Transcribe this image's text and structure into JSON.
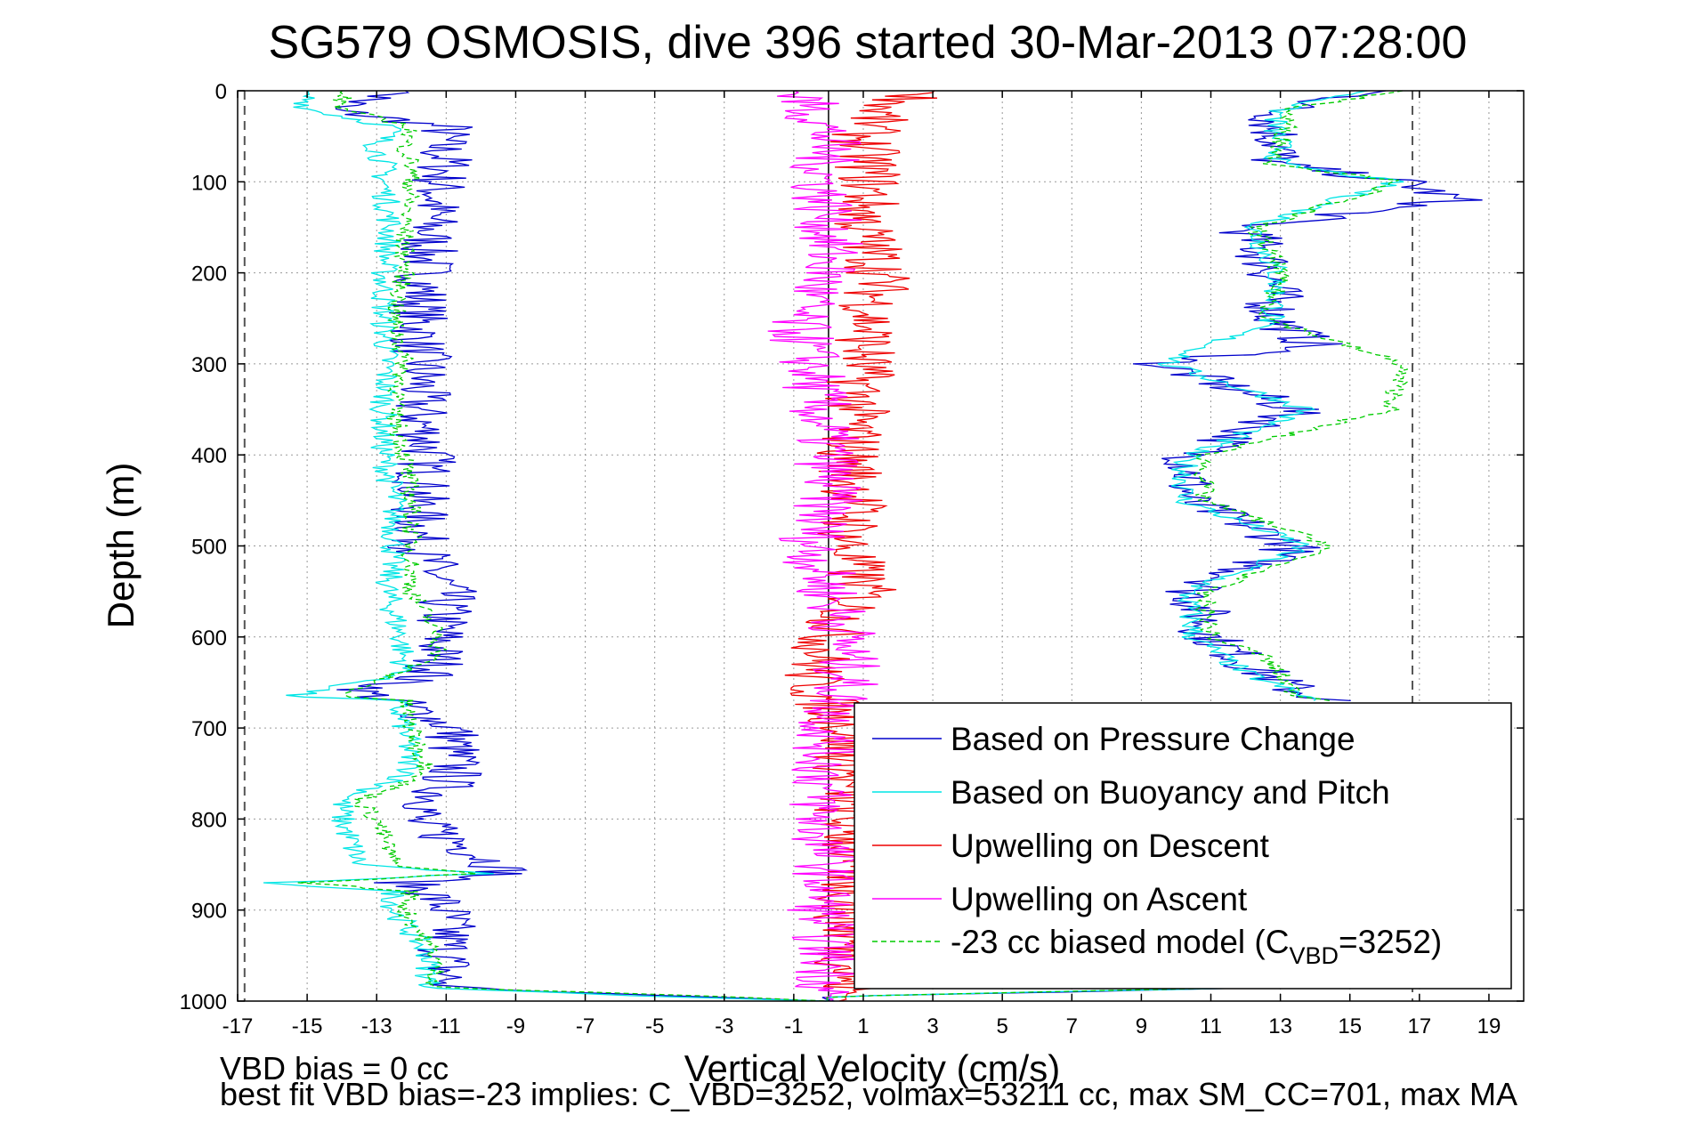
{
  "chart_data": {
    "type": "line",
    "title": "SG579 OSMOSIS, dive 396 started 30-Mar-2013 07:28:00",
    "xlabel": "Vertical Velocity (cm/s)",
    "ylabel": "Depth (m)",
    "xlim": [
      -17,
      20
    ],
    "ylim": [
      1000,
      0
    ],
    "y_reversed": true,
    "grid": true,
    "legend_position": "lower-right",
    "x_ticks": [
      "-17",
      "-15",
      "-13",
      "-11",
      "-9",
      "-7",
      "-5",
      "-3",
      "-1",
      "1",
      "3",
      "5",
      "7",
      "9",
      "11",
      "13",
      "15",
      "17",
      "19"
    ],
    "y_ticks": [
      "0",
      "100",
      "200",
      "300",
      "400",
      "500",
      "600",
      "700",
      "800",
      "900",
      "1000"
    ],
    "reference_lines": [
      {
        "x": -16.8,
        "style": "dashed",
        "color": "#555555"
      },
      {
        "x": 16.8,
        "style": "dashed",
        "color": "#555555"
      },
      {
        "x": 0,
        "style": "solid",
        "color": "#000000"
      }
    ],
    "series": [
      {
        "name": "Based on Pressure Change",
        "color": "#0000cc",
        "style": "solid",
        "depth": [
          0,
          20,
          40,
          60,
          80,
          100,
          120,
          150,
          200,
          250,
          280,
          300,
          350,
          400,
          450,
          500,
          550,
          600,
          640,
          660,
          670,
          700,
          750,
          790,
          800,
          850,
          860,
          870,
          880,
          900,
          950,
          985,
          995,
          1000
        ],
        "dive_v": [
          -12,
          -14.5,
          -11,
          -11.2,
          -11,
          -11.2,
          -11.3,
          -11.5,
          -11.6,
          -11.8,
          -11.8,
          -11.7,
          -11.8,
          -11.5,
          -11.8,
          -11.8,
          -11,
          -11.2,
          -11.3,
          -13.5,
          -12.5,
          -10.8,
          -10.8,
          -11.5,
          -12,
          -9.5,
          -9.3,
          -12.2,
          -11.5,
          -11,
          -11,
          -11,
          -4,
          0
        ],
        "climb_v": [
          16,
          13,
          12.8,
          13,
          12.8,
          16.5,
          18,
          12,
          12.8,
          12.8,
          14,
          9.5,
          13.5,
          10.5,
          10.3,
          13.5,
          10.5,
          11,
          12.5,
          13.5,
          14.5,
          null,
          null,
          null,
          null,
          null,
          null,
          null,
          null,
          null,
          null,
          12.5,
          0,
          0
        ]
      },
      {
        "name": "Based on Buoyancy and Pitch",
        "color": "#00e5e5",
        "style": "solid",
        "depth": [
          0,
          20,
          40,
          60,
          80,
          100,
          150,
          200,
          250,
          300,
          350,
          400,
          450,
          500,
          550,
          600,
          640,
          665,
          670,
          700,
          750,
          780,
          800,
          850,
          860,
          870,
          880,
          900,
          950,
          985,
          995,
          1000
        ],
        "dive_v": [
          -15,
          -15,
          -12.5,
          -13,
          -12.8,
          -12.8,
          -12.6,
          -12.8,
          -12.8,
          -12.7,
          -12.8,
          -12.8,
          -12.5,
          -12.5,
          -12.7,
          -12.3,
          -12.2,
          -15.5,
          -12.5,
          -12.2,
          -12,
          -14,
          -14,
          -13.5,
          -10,
          -16,
          -12.5,
          -12.5,
          -11.5,
          -11.5,
          -5,
          0
        ],
        "climb_v": [
          15.5,
          13,
          12.8,
          13,
          12.9,
          16.3,
          12.2,
          12.9,
          12.8,
          9.7,
          13.8,
          10.3,
          10.2,
          13.7,
          10.3,
          10.5,
          12,
          13.7,
          14,
          null,
          null,
          null,
          null,
          null,
          null,
          null,
          null,
          null,
          null,
          12.5,
          0,
          0
        ]
      },
      {
        "name": "Upwelling on Descent",
        "color": "#ee0000",
        "style": "solid",
        "depth": [
          0,
          20,
          50,
          100,
          150,
          200,
          250,
          300,
          350,
          400,
          450,
          500,
          550,
          600,
          650,
          700,
          800,
          850,
          900,
          950,
          1000
        ],
        "values": [
          3,
          1.5,
          1,
          1.2,
          1,
          1.5,
          1.2,
          1,
          0.8,
          0.6,
          0.8,
          0.5,
          1,
          0,
          -0.5,
          0.5,
          0.5,
          0.7,
          0.5,
          0.6,
          0.5
        ]
      },
      {
        "name": "Upwelling on Ascent",
        "color": "#ff00ff",
        "style": "solid",
        "depth": [
          0,
          20,
          50,
          100,
          150,
          200,
          250,
          300,
          350,
          400,
          450,
          500,
          550,
          600,
          650,
          700,
          800,
          850,
          900,
          950,
          1000
        ],
        "values": [
          -1,
          -0.5,
          0,
          -0.2,
          0,
          0,
          -1,
          -0.5,
          -0.3,
          0,
          0,
          -0.5,
          0,
          0.5,
          0.5,
          0,
          -0.3,
          0,
          -0.2,
          0,
          0
        ]
      },
      {
        "name": "-23 cc biased model (C",
        "color": "#00cc00",
        "style": "dashed",
        "depth": [
          0,
          20,
          40,
          60,
          80,
          100,
          150,
          200,
          250,
          300,
          350,
          400,
          450,
          500,
          550,
          600,
          620,
          665,
          670,
          700,
          750,
          780,
          800,
          850,
          860,
          870,
          880,
          900,
          950,
          985,
          995,
          1000
        ],
        "dive_v": [
          -14,
          -14,
          -12,
          -12.2,
          -12,
          -12,
          -12.2,
          -12.2,
          -12.5,
          -12.2,
          -12.5,
          -12.2,
          -12,
          -12,
          -12,
          -11.2,
          -11.2,
          -14,
          -12.2,
          -12,
          -11.5,
          -13.5,
          -13,
          -12.5,
          -10.3,
          -15,
          -12,
          -12.2,
          -11.3,
          -11.3,
          -3,
          0
        ],
        "climb_v": [
          16.5,
          13.2,
          13.2,
          13,
          12.8,
          16.5,
          12.3,
          13,
          12.6,
          16.5,
          16.2,
          10.8,
          10.8,
          14.5,
          10.8,
          11,
          12.5,
          13.5,
          14.5,
          null,
          null,
          null,
          null,
          null,
          null,
          null,
          null,
          null,
          null,
          12.5,
          0,
          0
        ]
      }
    ],
    "legend": [
      {
        "label": "Based on Pressure Change",
        "color": "#0000cc",
        "dash": false
      },
      {
        "label": "Based on Buoyancy and Pitch",
        "color": "#00e5e5",
        "dash": false
      },
      {
        "label": "Upwelling on Descent",
        "color": "#ee0000",
        "dash": false
      },
      {
        "label": "Upwelling on Ascent",
        "color": "#ff00ff",
        "dash": false
      },
      {
        "label": "-23 cc biased model (C",
        "sub": "VBD",
        "tail": "=3252)",
        "color": "#00cc00",
        "dash": true
      }
    ]
  },
  "footer": {
    "line1": "VBD bias = 0 cc",
    "line2": "best fit VBD bias=-23 implies: C_VBD=3252, volmax=53211 cc, max SM_CC=701, max MA"
  }
}
